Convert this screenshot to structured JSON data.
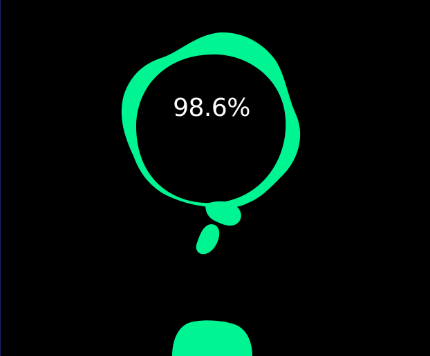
{
  "progress": {
    "label": "98.6%",
    "value_percent": 98.6
  },
  "colors": {
    "background": "#000000",
    "accent": "#00f592",
    "text": "#ffffff"
  }
}
